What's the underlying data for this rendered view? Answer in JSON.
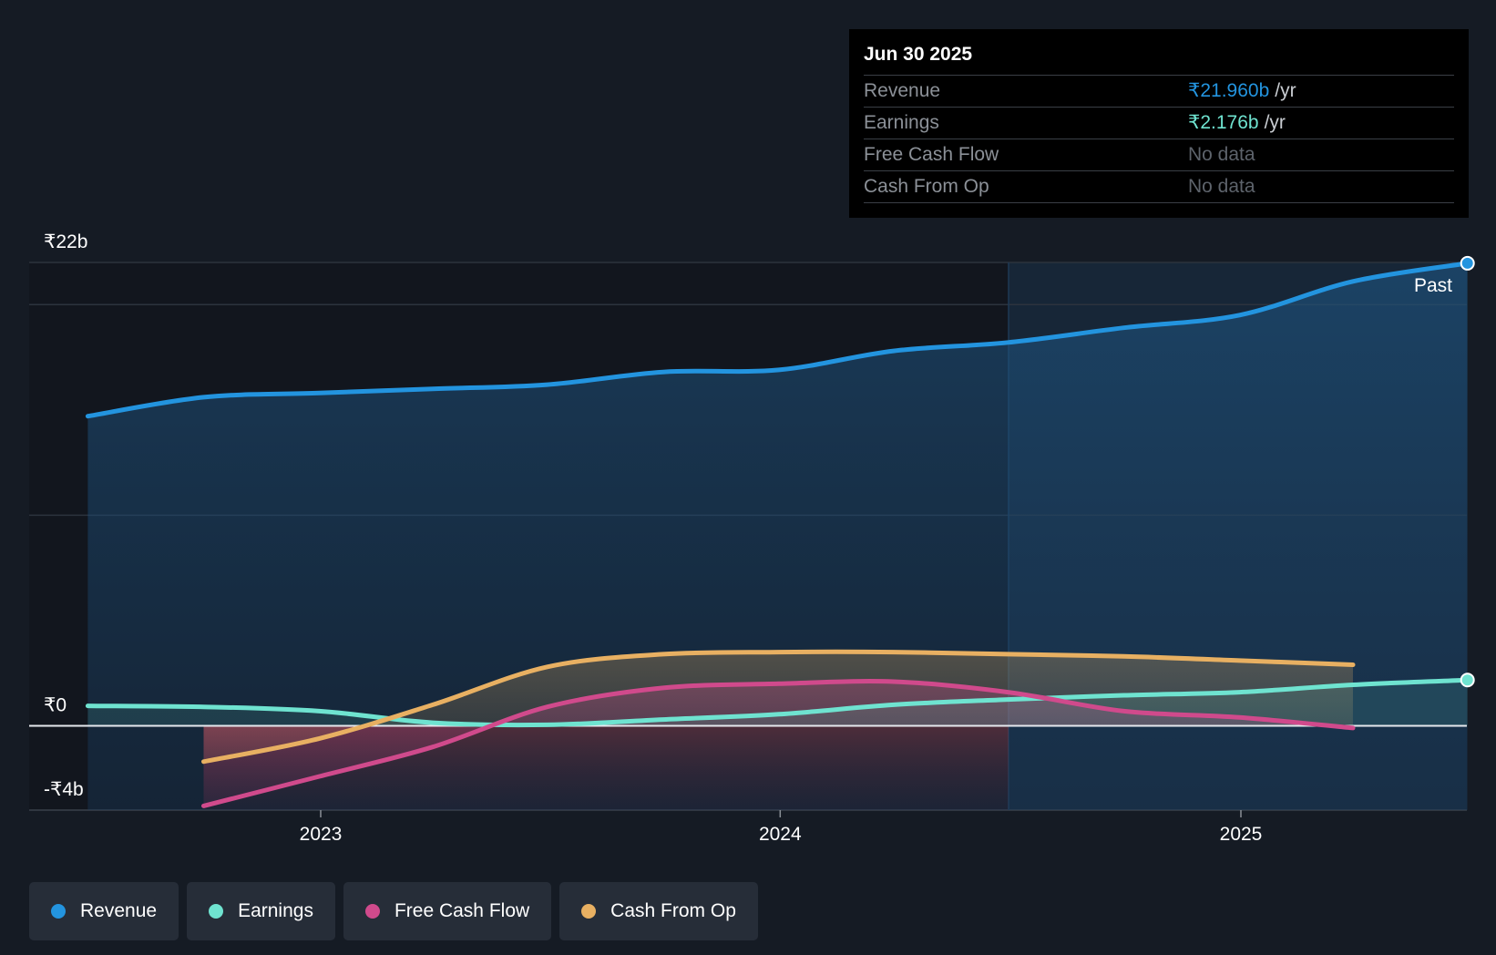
{
  "chart_data": {
    "type": "line",
    "ylim": [
      -4,
      22
    ],
    "y_axis_labels": [
      "₹22b",
      "₹0",
      "-₹4b"
    ],
    "x_ticks": [
      "2023",
      "2024",
      "2025"
    ],
    "past_label": "Past",
    "grid": true,
    "series": [
      {
        "name": "Revenue",
        "color": "#2394df",
        "x": [
          "2022-06-30",
          "2022-09-30",
          "2022-12-31",
          "2023-03-31",
          "2023-06-30",
          "2023-09-30",
          "2023-12-31",
          "2024-03-31",
          "2024-06-30",
          "2024-09-30",
          "2024-12-31",
          "2025-03-31",
          "2025-06-30"
        ],
        "values": [
          14.7,
          15.6,
          15.8,
          16.0,
          16.2,
          16.8,
          16.9,
          17.8,
          18.2,
          18.9,
          19.5,
          21.1,
          21.96
        ]
      },
      {
        "name": "Earnings",
        "color": "#6fe3d0",
        "x": [
          "2022-06-30",
          "2022-09-30",
          "2022-12-31",
          "2023-03-31",
          "2023-06-30",
          "2023-09-30",
          "2023-12-31",
          "2024-03-31",
          "2024-06-30",
          "2024-09-30",
          "2024-12-31",
          "2025-03-31",
          "2025-06-30"
        ],
        "values": [
          0.95,
          0.9,
          0.7,
          0.15,
          0.05,
          0.3,
          0.55,
          1.0,
          1.25,
          1.45,
          1.6,
          1.95,
          2.176
        ]
      },
      {
        "name": "Free Cash Flow",
        "color": "#d04a8c",
        "x": [
          "2022-09-30",
          "2022-12-31",
          "2023-03-31",
          "2023-06-30",
          "2023-09-30",
          "2023-12-31",
          "2024-03-31",
          "2024-06-30",
          "2024-09-30",
          "2024-12-31",
          "2025-03-31"
        ],
        "values": [
          -3.8,
          -2.4,
          -1.0,
          0.9,
          1.8,
          2.0,
          2.1,
          1.6,
          0.7,
          0.4,
          -0.1
        ]
      },
      {
        "name": "Cash From Op",
        "color": "#e8b062",
        "x": [
          "2022-09-30",
          "2022-12-31",
          "2023-03-31",
          "2023-06-30",
          "2023-09-30",
          "2023-12-31",
          "2024-03-31",
          "2024-06-30",
          "2024-09-30",
          "2024-12-31",
          "2025-03-31"
        ],
        "values": [
          -1.7,
          -0.6,
          1.0,
          2.8,
          3.4,
          3.5,
          3.5,
          3.4,
          3.3,
          3.1,
          2.9
        ]
      }
    ]
  },
  "tooltip": {
    "date": "Jun 30 2025",
    "rows": [
      {
        "name": "Revenue",
        "value": "₹21.960b",
        "unit": "/yr",
        "color": "#2394df"
      },
      {
        "name": "Earnings",
        "value": "₹2.176b",
        "unit": "/yr",
        "color": "#6fe3d0"
      },
      {
        "name": "Free Cash Flow",
        "value": "No data",
        "unit": ""
      },
      {
        "name": "Cash From Op",
        "value": "No data",
        "unit": ""
      }
    ]
  },
  "legend": [
    {
      "label": "Revenue",
      "color": "#2394df"
    },
    {
      "label": "Earnings",
      "color": "#6fe3d0"
    },
    {
      "label": "Free Cash Flow",
      "color": "#d04a8c"
    },
    {
      "label": "Cash From Op",
      "color": "#e8b062"
    }
  ]
}
